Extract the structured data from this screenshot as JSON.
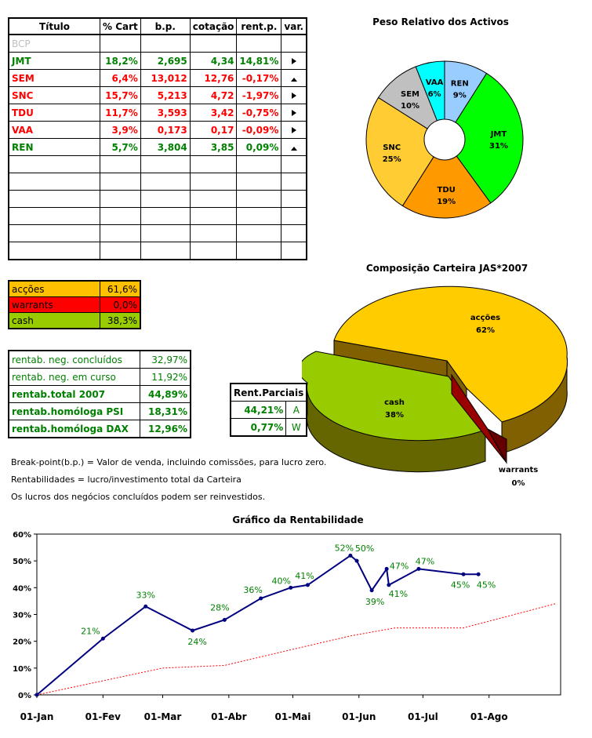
{
  "holdings": {
    "headers": [
      "Título",
      "% Cart",
      "b.p.",
      "cotação",
      "rent.p.",
      "var."
    ],
    "rows": [
      {
        "name": "BCP",
        "pct": "",
        "bp": "",
        "cot": "",
        "rent": "",
        "var": "",
        "color": "#c0c0c0"
      },
      {
        "name": "JMT",
        "pct": "18,2%",
        "bp": "2,695",
        "cot": "4,34",
        "rent": "14,81%",
        "var": "right",
        "color": "#008000"
      },
      {
        "name": "SEM",
        "pct": "6,4%",
        "bp": "13,012",
        "cot": "12,76",
        "rent": "-0,17%",
        "var": "up",
        "color": "#ff0000"
      },
      {
        "name": "SNC",
        "pct": "15,7%",
        "bp": "5,213",
        "cot": "4,72",
        "rent": "-1,97%",
        "var": "right",
        "color": "#ff0000"
      },
      {
        "name": "TDU",
        "pct": "11,7%",
        "bp": "3,593",
        "cot": "3,42",
        "rent": "-0,75%",
        "var": "right",
        "color": "#ff0000"
      },
      {
        "name": "VAA",
        "pct": "3,9%",
        "bp": "0,173",
        "cot": "0,17",
        "rent": "-0,09%",
        "var": "right",
        "color": "#ff0000"
      },
      {
        "name": "REN",
        "pct": "5,7%",
        "bp": "3,804",
        "cot": "3,85",
        "rent": "0,09%",
        "var": "up",
        "color": "#008000"
      }
    ],
    "empty_rows": 6
  },
  "allocation": [
    {
      "label": "acções",
      "value": "61,6%",
      "bg": "#ffc000"
    },
    {
      "label": "warrants",
      "value": "0,0%",
      "bg": "#ff0000"
    },
    {
      "label": "cash",
      "value": "38,3%",
      "bg": "#99cc00"
    }
  ],
  "rentab": [
    {
      "label": "rentab. neg. concluídos",
      "value": "32,97%",
      "bold": false
    },
    {
      "label": "rentab. neg. em curso",
      "value": "11,92%",
      "bold": false
    },
    {
      "label": "rentab.total 2007",
      "value": "44,89%",
      "bold": true
    },
    {
      "label": "rentab.homóloga PSI",
      "value": "18,31%",
      "bold": true
    },
    {
      "label": "rentab.homóloga DAX",
      "value": "12,96%",
      "bold": true
    }
  ],
  "parciais": {
    "header": "Rent.Parciais",
    "rows": [
      {
        "value": "44,21%",
        "key": "A"
      },
      {
        "value": "0,77%",
        "key": "W"
      }
    ]
  },
  "notes": [
    "Break-point(b.p.) = Valor de venda, incluindo comissões, para lucro zero.",
    "Rentabilidades = lucro/investimento total da Carteira",
    "Os lucros dos negócios concluídos podem ser reinvestidos."
  ],
  "chart_data": [
    {
      "type": "pie",
      "title": "Peso Relativo dos Activos",
      "donut": true,
      "slices": [
        {
          "label": "REN",
          "value": 9,
          "display": "9%",
          "color": "#99ccff"
        },
        {
          "label": "JMT",
          "value": 31,
          "display": "31%",
          "color": "#00ff00"
        },
        {
          "label": "TDU",
          "value": 19,
          "display": "19%",
          "color": "#ff9900"
        },
        {
          "label": "SNC",
          "value": 25,
          "display": "25%",
          "color": "#ffcc33"
        },
        {
          "label": "SEM",
          "value": 10,
          "display": "10%",
          "color": "#c0c0c0"
        },
        {
          "label": "VAA",
          "value": 6,
          "display": "6%",
          "color": "#00ffff"
        }
      ]
    },
    {
      "type": "pie",
      "title": "Composição Carteira JAS*2007",
      "style": "3d-exploded",
      "slices": [
        {
          "label": "acções",
          "value": 62,
          "display": "62%",
          "color": "#ffcc00"
        },
        {
          "label": "cash",
          "value": 38,
          "display": "38%",
          "color": "#99cc00"
        },
        {
          "label": "warrants",
          "value": 0,
          "display": "0%",
          "color": "#990000"
        }
      ]
    },
    {
      "type": "line",
      "title": "Gráfico da Rentabilidade",
      "x_ticks": [
        "01-Jan",
        "01-Fev",
        "01-Mar",
        "01-Abr",
        "01-Mai",
        "01-Jun",
        "01-Jul",
        "01-Ago"
      ],
      "y_ticks": [
        "0%",
        "10%",
        "20%",
        "30%",
        "40%",
        "50%",
        "60%"
      ],
      "ylim": [
        0,
        60
      ],
      "xlim": [
        "2007-01-01",
        "2007-09-01"
      ],
      "grid": false,
      "series": [
        {
          "color": "#000080",
          "style": "solid-markers",
          "points": [
            [
              "2007-01-01",
              0,
              ""
            ],
            [
              "2007-02-01",
              21,
              "21%"
            ],
            [
              "2007-02-21",
              33,
              "33%"
            ],
            [
              "2007-03-15",
              24,
              "24%"
            ],
            [
              "2007-03-30",
              28,
              "28%"
            ],
            [
              "2007-04-16",
              36,
              "36%"
            ],
            [
              "2007-04-30",
              40,
              "40%"
            ],
            [
              "2007-05-08",
              41,
              "41%"
            ],
            [
              "2007-05-28",
              52,
              "52%"
            ],
            [
              "2007-05-31",
              50,
              "50%"
            ],
            [
              "2007-06-07",
              39,
              "39%"
            ],
            [
              "2007-06-14",
              47,
              "47%"
            ],
            [
              "2007-06-15",
              41,
              "41%"
            ],
            [
              "2007-06-29",
              47,
              "47%"
            ],
            [
              "2007-07-20",
              45,
              "45%"
            ],
            [
              "2007-07-27",
              45,
              "45%"
            ]
          ]
        },
        {
          "color": "#ff0000",
          "style": "dotted",
          "points": [
            [
              "2007-01-01",
              0
            ],
            [
              "2007-03-01",
              10
            ],
            [
              "2007-03-30",
              11
            ],
            [
              "2007-05-01",
              17
            ],
            [
              "2007-05-28",
              22
            ],
            [
              "2007-06-18",
              25
            ],
            [
              "2007-07-20",
              25
            ],
            [
              "2007-09-01",
              34
            ]
          ]
        }
      ]
    }
  ]
}
